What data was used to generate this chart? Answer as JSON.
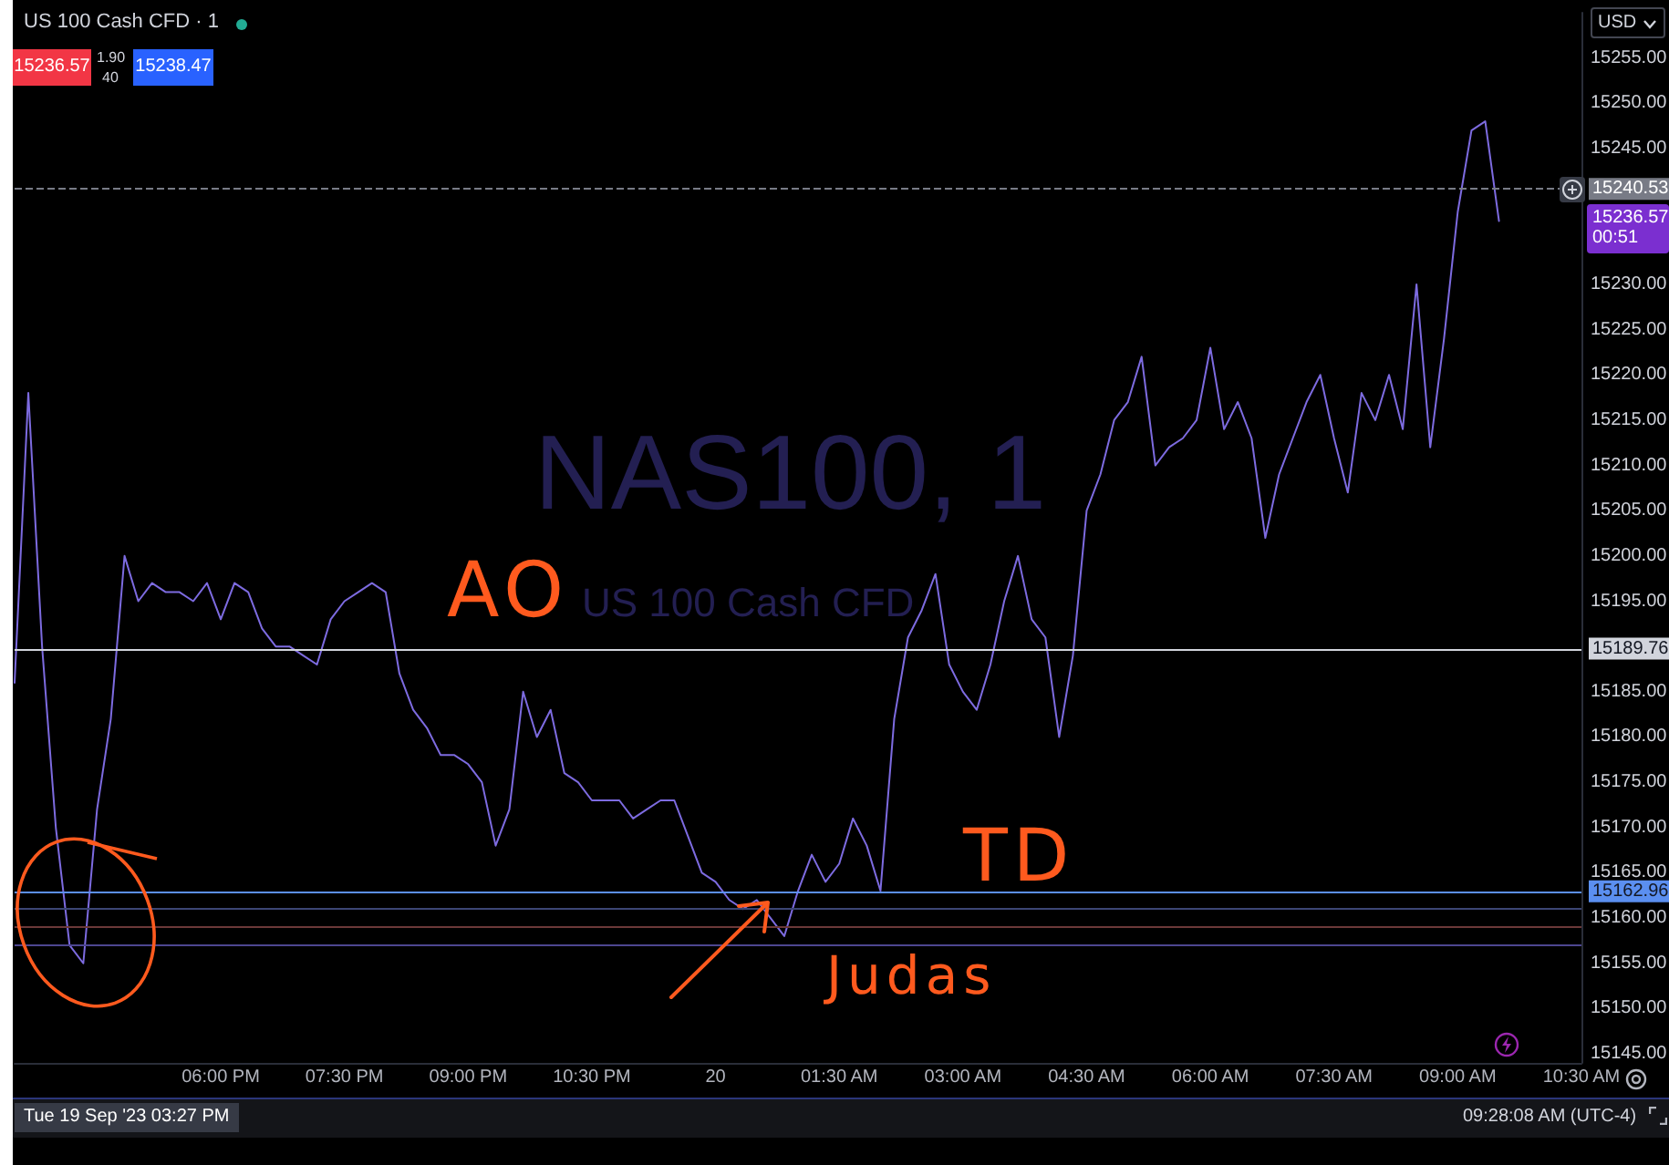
{
  "chart_data": {
    "type": "line",
    "title": "US 100 Cash CFD · 1",
    "annotations": [
      "AO",
      "TD",
      "Judas",
      "NAS100, 1",
      "US 100 Cash CFD",
      "15236.57",
      "1.90",
      "40",
      "15238.47",
      "USD",
      "15236.57",
      "00:51",
      "Tue 19 Sep '23 03:27 PM",
      "09:28:08 AM (UTC-4)"
    ],
    "categories": [
      null,
      null,
      null,
      null,
      null,
      null,
      null,
      null,
      null,
      null,
      null,
      null,
      null,
      null,
      null,
      "06:00 PM",
      null,
      null,
      null,
      null,
      null,
      null,
      null,
      null,
      "07:30 PM",
      null,
      null,
      null,
      null,
      null,
      null,
      null,
      null,
      "09:00 PM",
      null,
      null,
      null,
      null,
      null,
      null,
      null,
      null,
      "10:30 PM",
      null,
      null,
      null,
      null,
      null,
      null,
      null,
      null,
      "20",
      null,
      null,
      null,
      null,
      null,
      null,
      null,
      null,
      "01:30 AM",
      null,
      null,
      null,
      null,
      null,
      null,
      null,
      null,
      "03:00 AM",
      null,
      null,
      null,
      null,
      null,
      null,
      null,
      null,
      "04:30 AM",
      null,
      null,
      null,
      null,
      null,
      null,
      null,
      null,
      "06:00 AM",
      null,
      null,
      null,
      null,
      null,
      null,
      null,
      null,
      "07:30 AM",
      null,
      null,
      null,
      null,
      null,
      null,
      null,
      null,
      "09:00 AM",
      null,
      null,
      null,
      null,
      null,
      null,
      null,
      null,
      "10:30 AM"
    ],
    "values": [
      15186,
      15218,
      15190,
      15170,
      15157,
      15155,
      15172,
      15182,
      15200,
      15195,
      15197,
      15196,
      15196,
      15195,
      15197,
      15193,
      15197,
      15196,
      15192,
      15190,
      15190,
      15189,
      15188,
      15193,
      15195,
      15196,
      15197,
      15196,
      15187,
      15183,
      15181,
      15178,
      15178,
      15177,
      15175,
      15168,
      15172,
      15185,
      15180,
      15183,
      15176,
      15175,
      15173,
      15173,
      15173,
      15171,
      15172,
      15173,
      15173,
      15169,
      15165,
      15164,
      15162,
      15161,
      15162,
      15160,
      15158,
      15163,
      15167,
      15164,
      15166,
      15171,
      15168,
      15163,
      15182,
      15191,
      15194,
      15198,
      15188,
      15185,
      15183,
      15188,
      15195,
      15200,
      15193,
      15191,
      15180,
      15189,
      15205,
      15209,
      15215,
      15217,
      15222,
      15210,
      15212,
      15213,
      15215,
      15223,
      15214,
      15217,
      15213,
      15202,
      15209,
      15213,
      15217,
      15220,
      15213,
      15207,
      15218,
      15215,
      15220,
      15214,
      15230,
      15212,
      15224,
      15238,
      15247,
      15248,
      15237,
      null,
      null,
      null,
      null,
      null,
      null
    ],
    "color": "#7d6be0",
    "ylim": [
      15144,
      15260
    ],
    "yticks": [
      {
        "value": 15145,
        "label": "15145.00"
      },
      {
        "value": 15150,
        "label": "15150.00"
      },
      {
        "value": 15155,
        "label": "15155.00"
      },
      {
        "value": 15160,
        "label": "15160.00"
      },
      {
        "value": 15165,
        "label": "15165.00"
      },
      {
        "value": 15170,
        "label": "15170.00"
      },
      {
        "value": 15175,
        "label": "15175.00"
      },
      {
        "value": 15180,
        "label": "15180.00"
      },
      {
        "value": 15185,
        "label": "15185.00"
      },
      {
        "value": 15195,
        "label": "15195.00"
      },
      {
        "value": 15200,
        "label": "15200.00"
      },
      {
        "value": 15205,
        "label": "15205.00"
      },
      {
        "value": 15210,
        "label": "15210.00"
      },
      {
        "value": 15215,
        "label": "15215.00"
      },
      {
        "value": 15220,
        "label": "15220.00"
      },
      {
        "value": 15225,
        "label": "15225.00"
      },
      {
        "value": 15230,
        "label": "15230.00"
      },
      {
        "value": 15245,
        "label": "15245.00"
      },
      {
        "value": 15250,
        "label": "15250.00"
      },
      {
        "value": 15255,
        "label": "15255.00"
      }
    ],
    "ref_lines": [
      {
        "axis": "y",
        "value": 15240.53,
        "label": "15240.53",
        "color": "#787b86",
        "line_style": "dashed"
      },
      {
        "axis": "y",
        "value": 15189.76,
        "label": "15189.76",
        "color": "#d1d4dc"
      },
      {
        "axis": "y",
        "value": 15162.96,
        "label": "15162.96",
        "color": "#5b8ff0"
      },
      {
        "axis": "y",
        "value": 15161,
        "color": "#3c4575"
      },
      {
        "axis": "y",
        "value": 15159,
        "color": "#6b3838"
      },
      {
        "axis": "y",
        "value": 15157,
        "color": "#4d4690"
      }
    ],
    "grid": false,
    "marker": "none"
  }
}
